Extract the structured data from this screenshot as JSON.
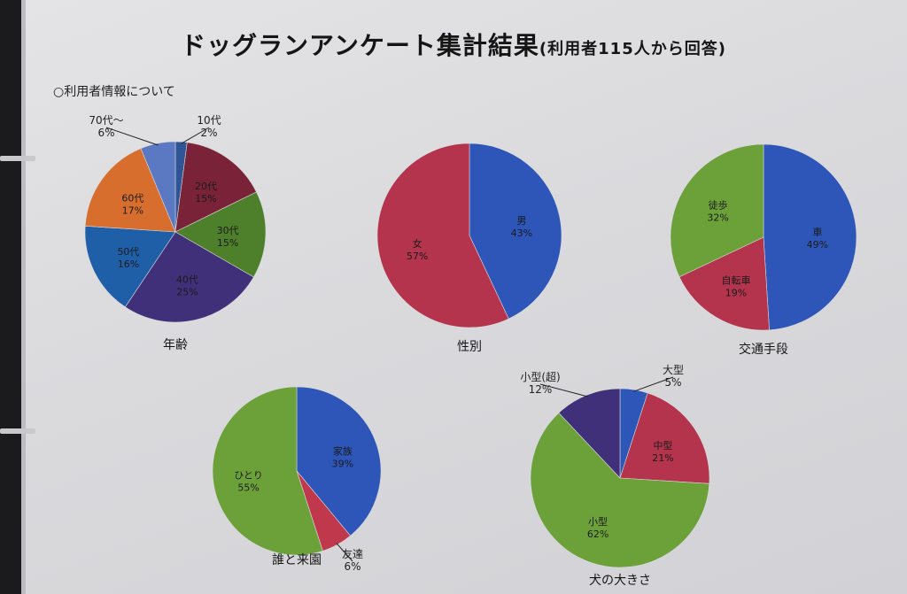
{
  "header": {
    "title": "ドッグランアンケート集計結果",
    "subtitle": "(利用者115人から回答)",
    "section": "○利用者情報について"
  },
  "chart_data": [
    {
      "type": "pie",
      "title": "年齢",
      "slices": [
        {
          "label": "10代",
          "value": 2,
          "color": "#2f5597"
        },
        {
          "label": "20代",
          "value": 15,
          "color": "#7a2338"
        },
        {
          "label": "30代",
          "value": 15,
          "color": "#4e7f2a"
        },
        {
          "label": "40代",
          "value": 25,
          "color": "#40307a"
        },
        {
          "label": "50代",
          "value": 16,
          "color": "#1f5fa8"
        },
        {
          "label": "60代",
          "value": 17,
          "color": "#d76e2e"
        },
        {
          "label": "70代〜",
          "value": 6,
          "color": "#5b78c2"
        }
      ]
    },
    {
      "type": "pie",
      "title": "性別",
      "slices": [
        {
          "label": "男",
          "value": 43,
          "color": "#2d56b8"
        },
        {
          "label": "女",
          "value": 57,
          "color": "#b3344c"
        }
      ]
    },
    {
      "type": "pie",
      "title": "交通手段",
      "slices": [
        {
          "label": "車",
          "value": 49,
          "color": "#2d56b8"
        },
        {
          "label": "自転車",
          "value": 19,
          "color": "#b3344c"
        },
        {
          "label": "徒歩",
          "value": 32,
          "color": "#6ca13a"
        }
      ]
    },
    {
      "type": "pie",
      "title": "誰と来園",
      "slices": [
        {
          "label": "家族",
          "value": 39,
          "color": "#2d56b8"
        },
        {
          "label": "友達",
          "value": 6,
          "color": "#c0384c"
        },
        {
          "label": "ひとり",
          "value": 55,
          "color": "#6ca13a"
        }
      ]
    },
    {
      "type": "pie",
      "title": "犬の大きさ",
      "slices": [
        {
          "label": "大型",
          "value": 5,
          "color": "#2d56b8"
        },
        {
          "label": "中型",
          "value": 21,
          "color": "#b3344c"
        },
        {
          "label": "小型",
          "value": 62,
          "color": "#6ca13a"
        },
        {
          "label": "小型(超)",
          "value": 12,
          "color": "#40307a"
        }
      ]
    }
  ]
}
